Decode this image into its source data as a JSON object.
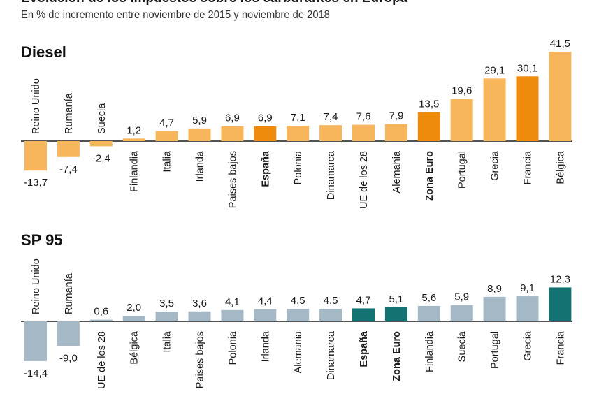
{
  "header": {
    "title": "Evolución de los impuestos sobre los carburantes en Europa",
    "subtitle": "En % de incremento entre noviembre de 2015 y noviembre de 2018"
  },
  "colors": {
    "diesel_bar": "#F7B55C",
    "diesel_highlight": "#EE8B0C",
    "sp95_bar": "#A5B8C5",
    "sp95_highlight": "#137272",
    "axis": "#1a1a1a"
  },
  "chart_data": [
    {
      "type": "bar",
      "title": "Diesel",
      "categories": [
        "Reino Unido",
        "Rumanía",
        "Suecia",
        "Finlandia",
        "Italia",
        "Irlanda",
        "Paises bajos",
        "España",
        "Polonia",
        "Dinamarca",
        "UE de los 28",
        "Alemania",
        "Zona Euro",
        "Portugal",
        "Grecia",
        "Francia",
        "Bélgica"
      ],
      "values": [
        -13.7,
        -7.4,
        -2.4,
        1.2,
        4.7,
        5.9,
        6.9,
        6.9,
        7.1,
        7.4,
        7.6,
        7.9,
        13.5,
        19.6,
        29.1,
        30.1,
        41.5
      ],
      "labels": [
        "-13,7",
        "-7,4",
        "-2,4",
        "1,2",
        "4,7",
        "5,9",
        "6,9",
        "6,9",
        "7,1",
        "7,4",
        "7,6",
        "7,9",
        "13,5",
        "19,6",
        "29,1",
        "30,1",
        "41,5"
      ],
      "highlight": [
        "España",
        "Zona Euro",
        "Francia"
      ],
      "bold_labels": [
        "España",
        "Zona Euro"
      ]
    },
    {
      "type": "bar",
      "title": "SP 95",
      "categories": [
        "Reino Unido",
        "Rumanía",
        "UE de los 28",
        "Bélgica",
        "Italia",
        "Paises bajos",
        "Polonia",
        "Irlanda",
        "Alemania",
        "Dinamarca",
        "España",
        "Zona Euro",
        "Finlandia",
        "Suecia",
        "Portugal",
        "Grecia",
        "Francia"
      ],
      "values": [
        -14.4,
        -9.0,
        0.6,
        2.0,
        3.5,
        3.6,
        4.1,
        4.4,
        4.5,
        4.5,
        4.7,
        5.1,
        5.6,
        5.9,
        8.9,
        9.1,
        12.3
      ],
      "labels": [
        "-14,4",
        "-9,0",
        "0,6",
        "2,0",
        "3,5",
        "3,6",
        "4,1",
        "4,4",
        "4,5",
        "4,5",
        "4,7",
        "5,1",
        "5,6",
        "5,9",
        "8,9",
        "9,1",
        "12,3"
      ],
      "highlight": [
        "España",
        "Zona Euro",
        "Francia"
      ],
      "bold_labels": [
        "España",
        "Zona Euro"
      ]
    }
  ]
}
